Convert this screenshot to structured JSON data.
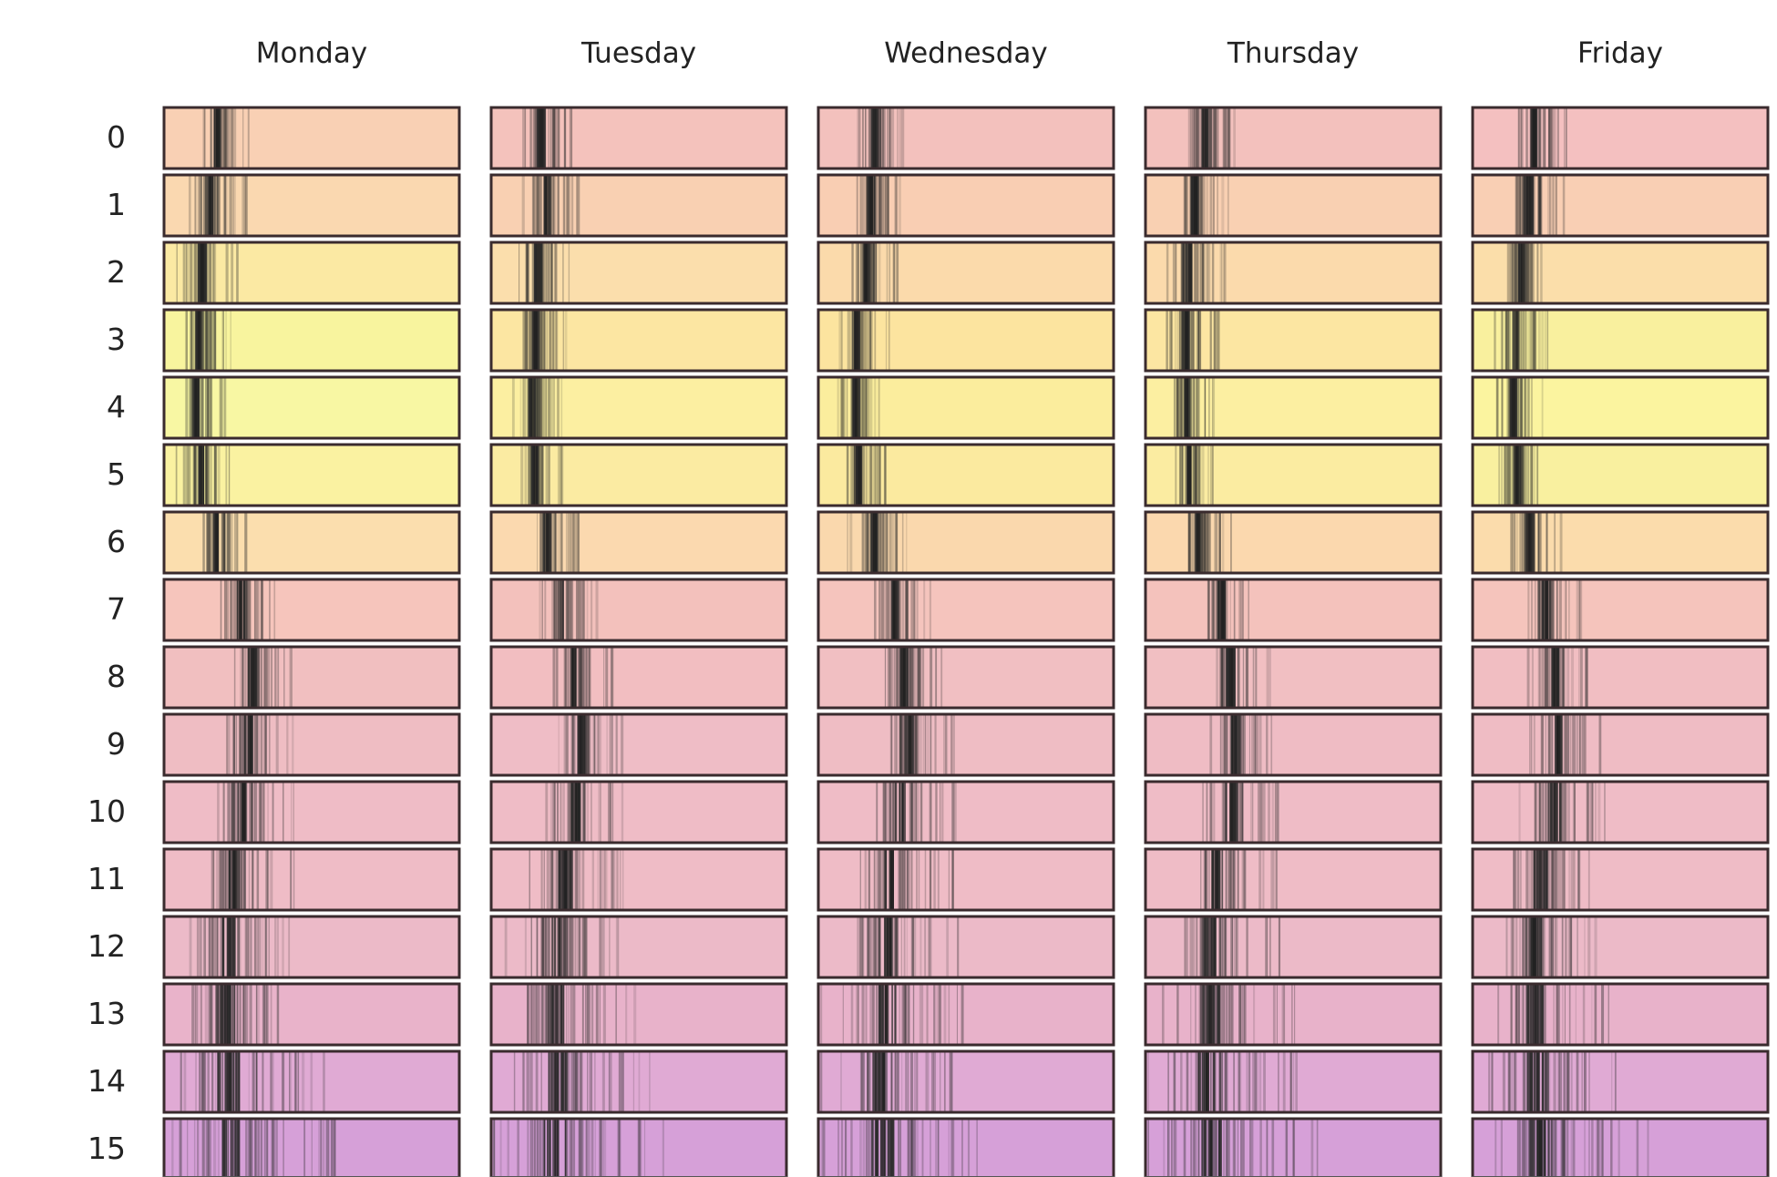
{
  "chart_data": {
    "type": "heatmap",
    "columns": [
      "Monday",
      "Tuesday",
      "Wednesday",
      "Thursday",
      "Friday"
    ],
    "rows": [
      "0",
      "1",
      "2",
      "3",
      "4",
      "5",
      "6",
      "7",
      "8",
      "9",
      "10",
      "11",
      "12",
      "13",
      "14",
      "15"
    ],
    "cell_colors": [
      [
        "#f9d0b4",
        "#f4c2bc",
        "#f3c1bd",
        "#f3c1bd",
        "#f4c0c0"
      ],
      [
        "#fad8b0",
        "#f9d0b2",
        "#f9ceb3",
        "#f9d0b2",
        "#f9cfb4"
      ],
      [
        "#fbe9a3",
        "#fbdeac",
        "#fbdaab",
        "#fbdaac",
        "#fbdeaa"
      ],
      [
        "#f8f49e",
        "#fce6a2",
        "#fce49f",
        "#fce6a2",
        "#f9f09e"
      ],
      [
        "#f8f7a3",
        "#fcefa1",
        "#fbed9d",
        "#fcefa1",
        "#fbf49f"
      ],
      [
        "#faf2a1",
        "#fbeba2",
        "#fbea9f",
        "#fbeca1",
        "#f9f09f"
      ],
      [
        "#fbdeae",
        "#fbd9af",
        "#fad8ad",
        "#fbd8ae",
        "#fbdcac"
      ],
      [
        "#f6c5bc",
        "#f3c1bc",
        "#f5c4bd",
        "#f4c2bc",
        "#f5c4bc"
      ],
      [
        "#f1bfc0",
        "#f2bec1",
        "#f1bfc2",
        "#f1bfc2",
        "#f1bec2"
      ],
      [
        "#efbdc3",
        "#efbdc6",
        "#efbdc4",
        "#efbcc4",
        "#efbcc4"
      ],
      [
        "#efbcc6",
        "#efbcc6",
        "#efbcc6",
        "#efbcc6",
        "#efbcc6"
      ],
      [
        "#efbcc6",
        "#efbcc6",
        "#efbcc6",
        "#efbcc6",
        "#efbcc6"
      ],
      [
        "#ecbac8",
        "#ecbac8",
        "#ecbac8",
        "#ecbac8",
        "#ecbac8"
      ],
      [
        "#e9b3ca",
        "#e8b2ca",
        "#e8b2ca",
        "#e8b2ca",
        "#e8b2ca"
      ],
      [
        "#e0aad4",
        "#e0aad4",
        "#e0aad4",
        "#e0aad4",
        "#e0aad4"
      ],
      [
        "#d6a0d8",
        "#d6a0d8",
        "#d6a0d8",
        "#d6a0d8",
        "#d6a0d8"
      ]
    ],
    "cluster_position": [
      [
        0.18,
        0.17,
        0.19,
        0.2,
        0.21
      ],
      [
        0.16,
        0.19,
        0.18,
        0.17,
        0.19
      ],
      [
        0.13,
        0.16,
        0.16,
        0.15,
        0.17
      ],
      [
        0.12,
        0.15,
        0.13,
        0.14,
        0.15
      ],
      [
        0.11,
        0.14,
        0.13,
        0.14,
        0.14
      ],
      [
        0.13,
        0.15,
        0.14,
        0.15,
        0.15
      ],
      [
        0.18,
        0.19,
        0.19,
        0.18,
        0.19
      ],
      [
        0.26,
        0.24,
        0.26,
        0.26,
        0.25
      ],
      [
        0.3,
        0.28,
        0.29,
        0.29,
        0.28
      ],
      [
        0.29,
        0.3,
        0.31,
        0.3,
        0.29
      ],
      [
        0.27,
        0.29,
        0.29,
        0.29,
        0.28
      ],
      [
        0.24,
        0.25,
        0.25,
        0.24,
        0.23
      ],
      [
        0.22,
        0.23,
        0.24,
        0.22,
        0.21
      ],
      [
        0.21,
        0.22,
        0.23,
        0.22,
        0.21
      ],
      [
        0.22,
        0.22,
        0.22,
        0.21,
        0.22
      ],
      [
        0.23,
        0.22,
        0.22,
        0.22,
        0.23
      ]
    ],
    "spread": [
      0.1,
      0.11,
      0.11,
      0.1,
      0.09,
      0.09,
      0.1,
      0.11,
      0.12,
      0.14,
      0.16,
      0.19,
      0.22,
      0.26,
      0.3,
      0.34
    ],
    "title": "",
    "xlabel": "",
    "ylabel": "",
    "grid": false,
    "legend": "none"
  }
}
